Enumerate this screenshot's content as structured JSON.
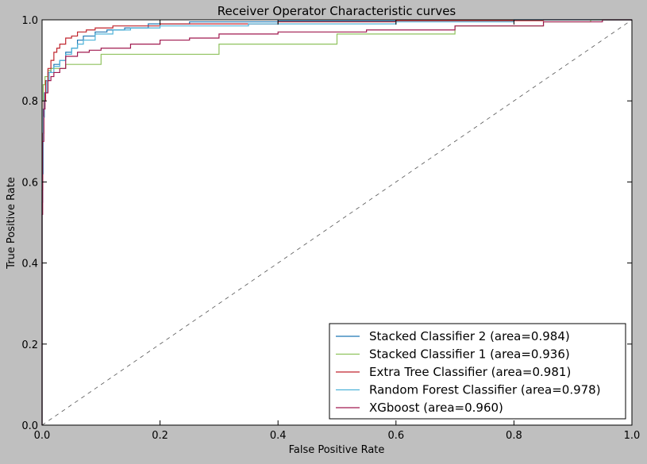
{
  "chart_data": {
    "type": "line",
    "title": "Receiver Operator Characteristic curves",
    "xlabel": "False Positive Rate",
    "ylabel": "True Positive Rate",
    "xlim": [
      0.0,
      1.0
    ],
    "ylim": [
      0.0,
      1.0
    ],
    "xticks": [
      "0.0",
      "0.2",
      "0.4",
      "0.6",
      "0.8",
      "1.0"
    ],
    "yticks": [
      "0.0",
      "0.2",
      "0.4",
      "0.6",
      "0.8",
      "1.0"
    ],
    "grid": false,
    "legend_position": "bottom-right",
    "series": [
      {
        "name": "Stacked Classifier 2  (area=0.984)",
        "color": "#1f77b4",
        "points": [
          [
            0.0,
            0.0
          ],
          [
            0.001,
            0.55
          ],
          [
            0.002,
            0.7
          ],
          [
            0.004,
            0.78
          ],
          [
            0.006,
            0.82
          ],
          [
            0.01,
            0.85
          ],
          [
            0.015,
            0.87
          ],
          [
            0.02,
            0.88
          ],
          [
            0.03,
            0.89
          ],
          [
            0.04,
            0.9
          ],
          [
            0.05,
            0.92
          ],
          [
            0.06,
            0.93
          ],
          [
            0.07,
            0.95
          ],
          [
            0.09,
            0.96
          ],
          [
            0.11,
            0.97
          ],
          [
            0.14,
            0.975
          ],
          [
            0.18,
            0.98
          ],
          [
            0.25,
            0.99
          ],
          [
            0.4,
            0.995
          ],
          [
            0.6,
            0.997
          ],
          [
            0.8,
            0.999
          ],
          [
            1.0,
            1.0
          ]
        ]
      },
      {
        "name": "Stacked Classifier 1 (area=0.936)",
        "color": "#8fc25d",
        "points": [
          [
            0.0,
            0.0
          ],
          [
            0.002,
            0.8
          ],
          [
            0.005,
            0.84
          ],
          [
            0.01,
            0.86
          ],
          [
            0.015,
            0.875
          ],
          [
            0.02,
            0.88
          ],
          [
            0.04,
            0.88
          ],
          [
            0.1,
            0.89
          ],
          [
            0.3,
            0.915
          ],
          [
            0.5,
            0.94
          ],
          [
            0.7,
            0.965
          ],
          [
            0.85,
            0.985
          ],
          [
            0.93,
            0.995
          ],
          [
            1.0,
            1.0
          ]
        ]
      },
      {
        "name": "Extra Tree Classifier  (area=0.981)",
        "color": "#c0252d",
        "points": [
          [
            0.0,
            0.0
          ],
          [
            0.001,
            0.58
          ],
          [
            0.003,
            0.72
          ],
          [
            0.006,
            0.8
          ],
          [
            0.01,
            0.85
          ],
          [
            0.015,
            0.88
          ],
          [
            0.02,
            0.9
          ],
          [
            0.025,
            0.92
          ],
          [
            0.03,
            0.93
          ],
          [
            0.04,
            0.94
          ],
          [
            0.05,
            0.955
          ],
          [
            0.06,
            0.96
          ],
          [
            0.075,
            0.97
          ],
          [
            0.09,
            0.975
          ],
          [
            0.12,
            0.98
          ],
          [
            0.2,
            0.985
          ],
          [
            0.4,
            0.99
          ],
          [
            0.6,
            0.995
          ],
          [
            0.85,
            0.998
          ],
          [
            1.0,
            1.0
          ]
        ]
      },
      {
        "name": "Random Forest Classifier  (area=0.978)",
        "color": "#4fb3d9",
        "points": [
          [
            0.0,
            0.0
          ],
          [
            0.002,
            0.62
          ],
          [
            0.004,
            0.76
          ],
          [
            0.008,
            0.82
          ],
          [
            0.012,
            0.85
          ],
          [
            0.02,
            0.87
          ],
          [
            0.03,
            0.885
          ],
          [
            0.04,
            0.9
          ],
          [
            0.05,
            0.915
          ],
          [
            0.06,
            0.93
          ],
          [
            0.07,
            0.94
          ],
          [
            0.09,
            0.95
          ],
          [
            0.12,
            0.965
          ],
          [
            0.15,
            0.975
          ],
          [
            0.2,
            0.98
          ],
          [
            0.35,
            0.985
          ],
          [
            0.6,
            0.99
          ],
          [
            0.8,
            0.995
          ],
          [
            1.0,
            1.0
          ]
        ]
      },
      {
        "name": "XGboost (area=0.960)",
        "color": "#a0194f",
        "points": [
          [
            0.0,
            0.0
          ],
          [
            0.001,
            0.52
          ],
          [
            0.003,
            0.7
          ],
          [
            0.005,
            0.78
          ],
          [
            0.01,
            0.82
          ],
          [
            0.015,
            0.85
          ],
          [
            0.02,
            0.86
          ],
          [
            0.03,
            0.87
          ],
          [
            0.04,
            0.88
          ],
          [
            0.06,
            0.91
          ],
          [
            0.08,
            0.92
          ],
          [
            0.1,
            0.925
          ],
          [
            0.15,
            0.93
          ],
          [
            0.2,
            0.94
          ],
          [
            0.25,
            0.95
          ],
          [
            0.3,
            0.955
          ],
          [
            0.4,
            0.965
          ],
          [
            0.55,
            0.97
          ],
          [
            0.7,
            0.975
          ],
          [
            0.85,
            0.985
          ],
          [
            0.95,
            0.995
          ],
          [
            1.0,
            1.0
          ]
        ]
      }
    ],
    "reference_line": {
      "points": [
        [
          0.0,
          0.0
        ],
        [
          1.0,
          1.0
        ]
      ],
      "color": "#555555",
      "style": "dashed"
    }
  }
}
